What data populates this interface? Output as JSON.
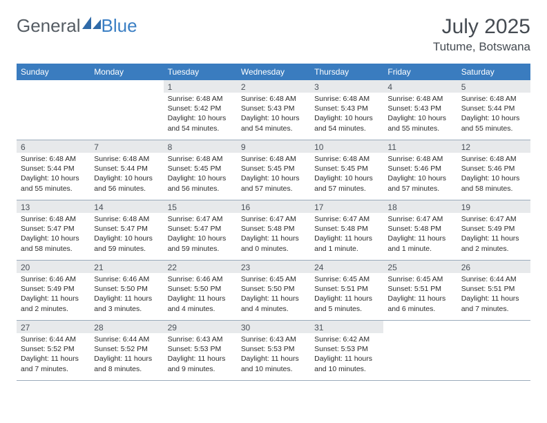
{
  "brand": {
    "part1": "General",
    "part2": "Blue"
  },
  "title": "July 2025",
  "location": "Tutume, Botswana",
  "colors": {
    "header_bg": "#3a7cbf",
    "header_text": "#ffffff",
    "daynum_bg": "#e7e9eb",
    "text": "#2b2b2b",
    "title": "#454b52",
    "border": "#9aaabb"
  },
  "weekdays": [
    "Sunday",
    "Monday",
    "Tuesday",
    "Wednesday",
    "Thursday",
    "Friday",
    "Saturday"
  ],
  "weeks": [
    [
      {
        "n": "",
        "sr": "",
        "ss": "",
        "dl": ""
      },
      {
        "n": "",
        "sr": "",
        "ss": "",
        "dl": ""
      },
      {
        "n": "1",
        "sr": "Sunrise: 6:48 AM",
        "ss": "Sunset: 5:42 PM",
        "dl": "Daylight: 10 hours and 54 minutes."
      },
      {
        "n": "2",
        "sr": "Sunrise: 6:48 AM",
        "ss": "Sunset: 5:43 PM",
        "dl": "Daylight: 10 hours and 54 minutes."
      },
      {
        "n": "3",
        "sr": "Sunrise: 6:48 AM",
        "ss": "Sunset: 5:43 PM",
        "dl": "Daylight: 10 hours and 54 minutes."
      },
      {
        "n": "4",
        "sr": "Sunrise: 6:48 AM",
        "ss": "Sunset: 5:43 PM",
        "dl": "Daylight: 10 hours and 55 minutes."
      },
      {
        "n": "5",
        "sr": "Sunrise: 6:48 AM",
        "ss": "Sunset: 5:44 PM",
        "dl": "Daylight: 10 hours and 55 minutes."
      }
    ],
    [
      {
        "n": "6",
        "sr": "Sunrise: 6:48 AM",
        "ss": "Sunset: 5:44 PM",
        "dl": "Daylight: 10 hours and 55 minutes."
      },
      {
        "n": "7",
        "sr": "Sunrise: 6:48 AM",
        "ss": "Sunset: 5:44 PM",
        "dl": "Daylight: 10 hours and 56 minutes."
      },
      {
        "n": "8",
        "sr": "Sunrise: 6:48 AM",
        "ss": "Sunset: 5:45 PM",
        "dl": "Daylight: 10 hours and 56 minutes."
      },
      {
        "n": "9",
        "sr": "Sunrise: 6:48 AM",
        "ss": "Sunset: 5:45 PM",
        "dl": "Daylight: 10 hours and 57 minutes."
      },
      {
        "n": "10",
        "sr": "Sunrise: 6:48 AM",
        "ss": "Sunset: 5:45 PM",
        "dl": "Daylight: 10 hours and 57 minutes."
      },
      {
        "n": "11",
        "sr": "Sunrise: 6:48 AM",
        "ss": "Sunset: 5:46 PM",
        "dl": "Daylight: 10 hours and 57 minutes."
      },
      {
        "n": "12",
        "sr": "Sunrise: 6:48 AM",
        "ss": "Sunset: 5:46 PM",
        "dl": "Daylight: 10 hours and 58 minutes."
      }
    ],
    [
      {
        "n": "13",
        "sr": "Sunrise: 6:48 AM",
        "ss": "Sunset: 5:47 PM",
        "dl": "Daylight: 10 hours and 58 minutes."
      },
      {
        "n": "14",
        "sr": "Sunrise: 6:48 AM",
        "ss": "Sunset: 5:47 PM",
        "dl": "Daylight: 10 hours and 59 minutes."
      },
      {
        "n": "15",
        "sr": "Sunrise: 6:47 AM",
        "ss": "Sunset: 5:47 PM",
        "dl": "Daylight: 10 hours and 59 minutes."
      },
      {
        "n": "16",
        "sr": "Sunrise: 6:47 AM",
        "ss": "Sunset: 5:48 PM",
        "dl": "Daylight: 11 hours and 0 minutes."
      },
      {
        "n": "17",
        "sr": "Sunrise: 6:47 AM",
        "ss": "Sunset: 5:48 PM",
        "dl": "Daylight: 11 hours and 1 minute."
      },
      {
        "n": "18",
        "sr": "Sunrise: 6:47 AM",
        "ss": "Sunset: 5:48 PM",
        "dl": "Daylight: 11 hours and 1 minute."
      },
      {
        "n": "19",
        "sr": "Sunrise: 6:47 AM",
        "ss": "Sunset: 5:49 PM",
        "dl": "Daylight: 11 hours and 2 minutes."
      }
    ],
    [
      {
        "n": "20",
        "sr": "Sunrise: 6:46 AM",
        "ss": "Sunset: 5:49 PM",
        "dl": "Daylight: 11 hours and 2 minutes."
      },
      {
        "n": "21",
        "sr": "Sunrise: 6:46 AM",
        "ss": "Sunset: 5:50 PM",
        "dl": "Daylight: 11 hours and 3 minutes."
      },
      {
        "n": "22",
        "sr": "Sunrise: 6:46 AM",
        "ss": "Sunset: 5:50 PM",
        "dl": "Daylight: 11 hours and 4 minutes."
      },
      {
        "n": "23",
        "sr": "Sunrise: 6:45 AM",
        "ss": "Sunset: 5:50 PM",
        "dl": "Daylight: 11 hours and 4 minutes."
      },
      {
        "n": "24",
        "sr": "Sunrise: 6:45 AM",
        "ss": "Sunset: 5:51 PM",
        "dl": "Daylight: 11 hours and 5 minutes."
      },
      {
        "n": "25",
        "sr": "Sunrise: 6:45 AM",
        "ss": "Sunset: 5:51 PM",
        "dl": "Daylight: 11 hours and 6 minutes."
      },
      {
        "n": "26",
        "sr": "Sunrise: 6:44 AM",
        "ss": "Sunset: 5:51 PM",
        "dl": "Daylight: 11 hours and 7 minutes."
      }
    ],
    [
      {
        "n": "27",
        "sr": "Sunrise: 6:44 AM",
        "ss": "Sunset: 5:52 PM",
        "dl": "Daylight: 11 hours and 7 minutes."
      },
      {
        "n": "28",
        "sr": "Sunrise: 6:44 AM",
        "ss": "Sunset: 5:52 PM",
        "dl": "Daylight: 11 hours and 8 minutes."
      },
      {
        "n": "29",
        "sr": "Sunrise: 6:43 AM",
        "ss": "Sunset: 5:53 PM",
        "dl": "Daylight: 11 hours and 9 minutes."
      },
      {
        "n": "30",
        "sr": "Sunrise: 6:43 AM",
        "ss": "Sunset: 5:53 PM",
        "dl": "Daylight: 11 hours and 10 minutes."
      },
      {
        "n": "31",
        "sr": "Sunrise: 6:42 AM",
        "ss": "Sunset: 5:53 PM",
        "dl": "Daylight: 11 hours and 10 minutes."
      },
      {
        "n": "",
        "sr": "",
        "ss": "",
        "dl": ""
      },
      {
        "n": "",
        "sr": "",
        "ss": "",
        "dl": ""
      }
    ]
  ]
}
